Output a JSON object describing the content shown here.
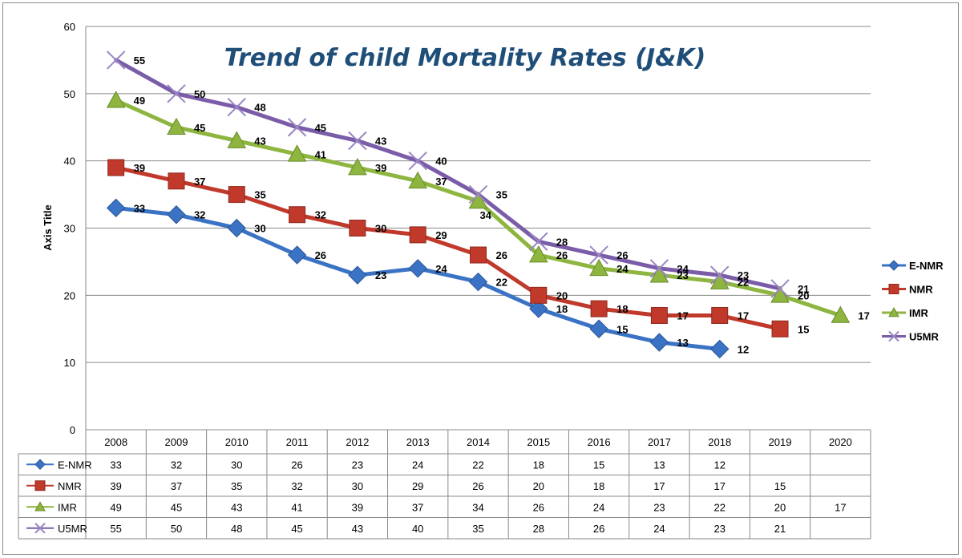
{
  "chart_data": {
    "type": "line",
    "title": "Trend of child Mortality Rates (J&K)",
    "xlabel": "",
    "ylabel": "Axis Title",
    "ylim": [
      0,
      60
    ],
    "y_ticks": [
      "0",
      "10",
      "20",
      "30",
      "40",
      "50",
      "60"
    ],
    "categories": [
      "2008",
      "2009",
      "2010",
      "2011",
      "2012",
      "2013",
      "2014",
      "2015",
      "2016",
      "2017",
      "2018",
      "2019",
      "2020"
    ],
    "grid": "horizontal",
    "legend_position": "right",
    "series": [
      {
        "name": "E-NMR",
        "color": "#3b73c4",
        "marker": "diamond",
        "values": [
          33,
          32,
          30,
          26,
          23,
          24,
          22,
          18,
          15,
          13,
          12,
          null,
          null
        ]
      },
      {
        "name": "NMR",
        "color": "#c0392b",
        "marker": "square",
        "values": [
          39,
          37,
          35,
          32,
          30,
          29,
          26,
          20,
          18,
          17,
          17,
          15,
          null
        ]
      },
      {
        "name": "IMR",
        "color": "#8db53f",
        "marker": "triangle",
        "values": [
          49,
          45,
          43,
          41,
          39,
          37,
          34,
          26,
          24,
          23,
          22,
          20,
          17
        ]
      },
      {
        "name": "U5MR",
        "color": "#7a5ca8",
        "marker": "x",
        "values": [
          55,
          50,
          48,
          45,
          43,
          40,
          35,
          28,
          26,
          24,
          23,
          21,
          null
        ]
      }
    ]
  }
}
